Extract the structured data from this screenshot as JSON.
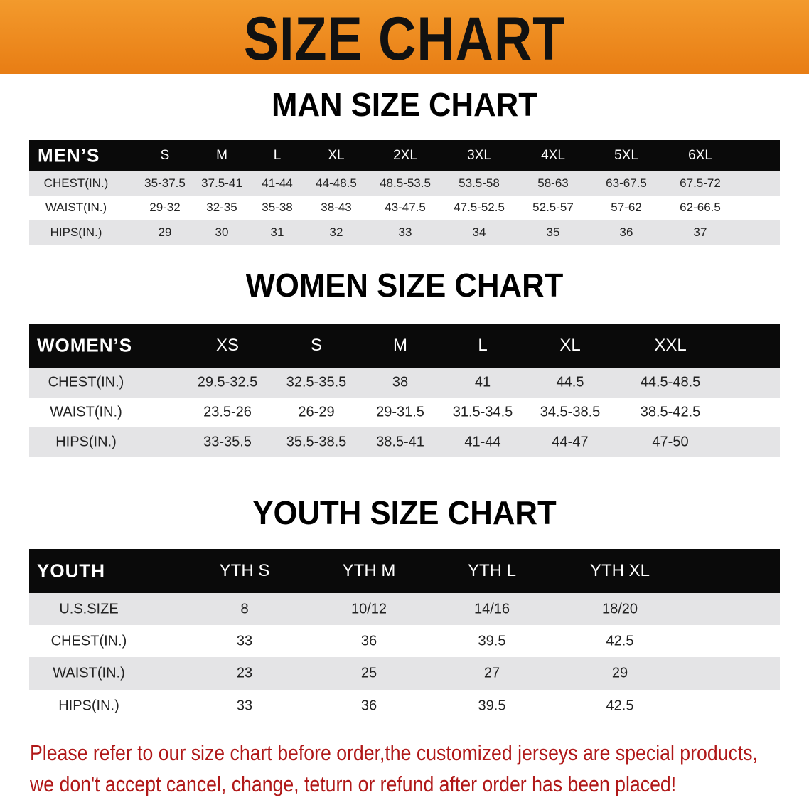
{
  "banner_title": "SIZE CHART",
  "men": {
    "title": "MAN SIZE CHART",
    "header": [
      "MEN’S",
      "S",
      "M",
      "L",
      "XL",
      "2XL",
      "3XL",
      "4XL",
      "5XL",
      "6XL"
    ],
    "rows": [
      [
        "CHEST(IN.)",
        "35-37.5",
        "37.5-41",
        "41-44",
        "44-48.5",
        "48.5-53.5",
        "53.5-58",
        "58-63",
        "63-67.5",
        "67.5-72"
      ],
      [
        "WAIST(IN.)",
        "29-32",
        "32-35",
        "35-38",
        "38-43",
        "43-47.5",
        "47.5-52.5",
        "52.5-57",
        "57-62",
        "62-66.5"
      ],
      [
        "HIPS(IN.)",
        "29",
        "30",
        "31",
        "32",
        "33",
        "34",
        "35",
        "36",
        "37"
      ]
    ]
  },
  "women": {
    "title": "WOMEN SIZE CHART",
    "header": [
      "WOMEN’S",
      "XS",
      "S",
      "M",
      "L",
      "XL",
      "XXL"
    ],
    "rows": [
      [
        "CHEST(IN.)",
        "29.5-32.5",
        "32.5-35.5",
        "38",
        "41",
        "44.5",
        "44.5-48.5"
      ],
      [
        "WAIST(IN.)",
        "23.5-26",
        "26-29",
        "29-31.5",
        "31.5-34.5",
        "34.5-38.5",
        "38.5-42.5"
      ],
      [
        "HIPS(IN.)",
        "33-35.5",
        "35.5-38.5",
        "38.5-41",
        "41-44",
        "44-47",
        "47-50"
      ]
    ]
  },
  "youth": {
    "title": "YOUTH SIZE CHART",
    "header": [
      "YOUTH",
      "YTH S",
      "YTH M",
      "YTH L",
      "YTH XL"
    ],
    "rows": [
      [
        "U.S.SIZE",
        "8",
        "10/12",
        "14/16",
        "18/20"
      ],
      [
        "CHEST(IN.)",
        "33",
        "36",
        "39.5",
        "42.5"
      ],
      [
        "WAIST(IN.)",
        "23",
        "25",
        "27",
        "29"
      ],
      [
        "HIPS(IN.)",
        "33",
        "36",
        "39.5",
        "42.5"
      ]
    ]
  },
  "notice": {
    "line1": "Please refer to our size chart before order,the customized jerseys are special products,",
    "line2": "we don't accept cancel, change, teturn or refund after order has been placed!",
    "color": "#b01818"
  },
  "colors": {
    "banner": "#ee8a1e",
    "header_row": "#0a0a0a",
    "stripe": "#e4e4e6"
  }
}
